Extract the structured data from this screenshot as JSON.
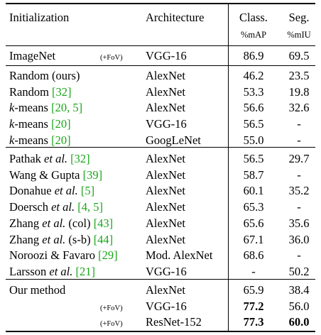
{
  "header": {
    "col_init": "Initialization",
    "col_arch": "Architecture",
    "col_class": "Class.",
    "col_seg": "Seg.",
    "sub_class": "%mAP",
    "sub_seg": "%mIU"
  },
  "groups": [
    {
      "rows": [
        {
          "name": "ImageNet",
          "tag": "(+FoV)",
          "arch": "VGG-16",
          "cls": "86.9",
          "seg": "69.5"
        }
      ]
    },
    {
      "rows": [
        {
          "name": "Random (ours)",
          "arch": "AlexNet",
          "cls": "46.2",
          "seg": "23.5"
        },
        {
          "name": "Random ",
          "cite": "[32]",
          "arch": "AlexNet",
          "cls": "53.3",
          "seg": "19.8"
        },
        {
          "name_it": "k",
          "name": "-means ",
          "cite": "[20, 5]",
          "arch": "AlexNet",
          "cls": "56.6",
          "seg": "32.6"
        },
        {
          "name_it": "k",
          "name": "-means ",
          "cite": "[20]",
          "arch": "VGG-16",
          "cls": "56.5",
          "seg": "-"
        },
        {
          "name_it": "k",
          "name": "-means ",
          "cite": "[20]",
          "arch": "GoogLeNet",
          "cls": "55.0",
          "seg": "-"
        }
      ]
    },
    {
      "rows": [
        {
          "name": "Pathak ",
          "etal": "et al.",
          "cite": "[32]",
          "arch": "AlexNet",
          "cls": "56.5",
          "seg": "29.7"
        },
        {
          "name": "Wang & Gupta ",
          "cite": "[39]",
          "arch": "AlexNet",
          "cls": "58.7",
          "seg": "-"
        },
        {
          "name": "Donahue ",
          "etal": "et al.",
          "cite": "[5]",
          "arch": "AlexNet",
          "cls": "60.1",
          "seg": "35.2"
        },
        {
          "name": "Doersch ",
          "etal": "et al.",
          "cite": "[4, 5]",
          "arch": "AlexNet",
          "cls": "65.3",
          "seg": "-"
        },
        {
          "name": "Zhang ",
          "etal": "et al.",
          "mid": " (col) ",
          "cite": "[43]",
          "arch": "AlexNet",
          "cls": "65.6",
          "seg": "35.6"
        },
        {
          "name": "Zhang ",
          "etal": "et al.",
          "mid": " (s-b) ",
          "cite": "[44]",
          "arch": "AlexNet",
          "cls": "67.1",
          "seg": "36.0"
        },
        {
          "name": "Noroozi & Favaro ",
          "cite": "[29]",
          "arch": "Mod. AlexNet",
          "cls": "68.6",
          "seg": "-"
        },
        {
          "name": "Larsson ",
          "etal": "et al.",
          "cite": "[21]",
          "arch": "VGG-16",
          "cls": "-",
          "seg": "50.2"
        }
      ]
    },
    {
      "rows": [
        {
          "name": "Our method",
          "arch": "AlexNet",
          "cls": "65.9",
          "seg": "38.4"
        },
        {
          "tag": "(+FoV)",
          "arch": "VGG-16",
          "cls": "77.2",
          "cls_bold": true,
          "seg": "56.0"
        },
        {
          "tag": "(+FoV)",
          "arch": "ResNet-152",
          "cls": "77.3",
          "cls_bold": true,
          "seg": "60.0",
          "seg_bold": true
        }
      ]
    }
  ]
}
